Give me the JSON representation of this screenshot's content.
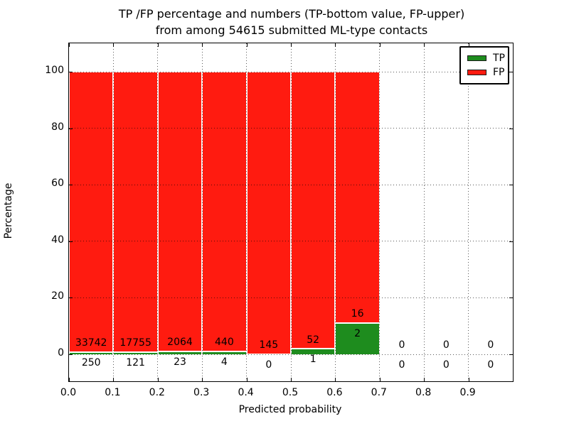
{
  "chart_data": {
    "type": "bar",
    "stacked": true,
    "orientation": "vertical",
    "title_line1": "TP /FP percentage and numbers (TP-bottom value, FP-upper)",
    "title_line2": "from among 54615 submitted ML-type contacts",
    "total_submitted": "54615",
    "xlabel": "Predicted probability",
    "ylabel": "Percentage",
    "x_tick_labels": [
      "0.0",
      "0.1",
      "0.2",
      "0.3",
      "0.4",
      "0.5",
      "0.6",
      "0.7",
      "0.8",
      "0.9"
    ],
    "y_tick_labels": [
      "0",
      "20",
      "40",
      "60",
      "80",
      "100"
    ],
    "y_ticks": [
      0,
      20,
      40,
      60,
      80,
      100
    ],
    "bin_edges": [
      0.0,
      0.1,
      0.2,
      0.3,
      0.4,
      0.5,
      0.6,
      0.7,
      0.8,
      0.9,
      1.0
    ],
    "xlim": [
      0.0,
      1.0
    ],
    "ylim_drawn": [
      -9.5,
      110
    ],
    "grid": "dotted, drawn above bars",
    "legend_position": "upper right",
    "series": [
      {
        "name": "TP",
        "color": "#1e8c1e",
        "counts": [
          250,
          121,
          23,
          4,
          0,
          1,
          2,
          0,
          0,
          0
        ],
        "pct": [
          0.74,
          0.68,
          1.1,
          0.9,
          0.0,
          1.89,
          11.11,
          0,
          0,
          0
        ]
      },
      {
        "name": "FP",
        "color": "#ff1b10",
        "counts": [
          33742,
          17755,
          2064,
          440,
          145,
          52,
          16,
          0,
          0,
          0
        ],
        "pct": [
          99.26,
          99.32,
          98.9,
          99.1,
          100.0,
          98.11,
          88.89,
          0,
          0,
          0
        ]
      }
    ],
    "annotation_note": "FP count printed above green/TP boundary, TP count printed below it"
  }
}
